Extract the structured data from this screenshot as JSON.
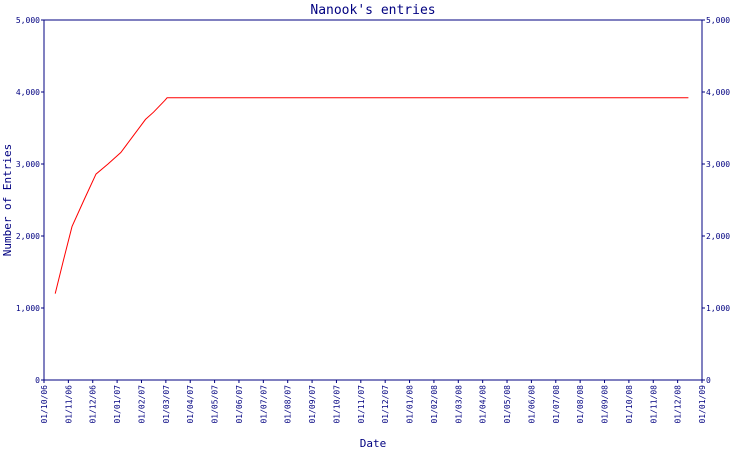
{
  "chart_data": {
    "type": "line",
    "title": "Nanook's entries",
    "xlabel": "Date",
    "ylabel": "Number of Entries",
    "ylim": [
      0,
      5000
    ],
    "y_ticks": [
      "0",
      "1,000",
      "2,000",
      "3,000",
      "4,000",
      "5,000"
    ],
    "y_tick_values": [
      0,
      1000,
      2000,
      3000,
      4000,
      5000
    ],
    "x_ticks": [
      "01/10/06",
      "01/11/06",
      "01/12/06",
      "01/01/07",
      "01/02/07",
      "01/03/07",
      "01/04/07",
      "01/05/07",
      "01/06/07",
      "01/07/07",
      "01/08/07",
      "01/09/07",
      "01/10/07",
      "01/11/07",
      "01/12/07",
      "01/01/08",
      "01/02/08",
      "01/03/08",
      "01/04/08",
      "01/05/08",
      "01/06/08",
      "01/07/08",
      "01/08/08",
      "01/09/08",
      "01/10/08",
      "01/11/08",
      "01/12/08",
      "01/01/09"
    ],
    "grid": false,
    "series": [
      {
        "x": [
          "2006-10-15",
          "2006-10-25",
          "2006-11-05",
          "2006-11-20",
          "2006-12-05",
          "2006-12-20",
          "2007-01-05",
          "2007-01-20",
          "2007-02-05",
          "2007-02-15",
          "2007-03-01",
          "2007-03-04",
          "2008-12-15"
        ],
        "values": [
          1200,
          1650,
          2130,
          2500,
          2860,
          3000,
          3160,
          3380,
          3620,
          3720,
          3880,
          3920,
          3920
        ]
      }
    ],
    "colors": {
      "line": "#ff0000",
      "axis": "#000080",
      "text": "#000080"
    }
  }
}
